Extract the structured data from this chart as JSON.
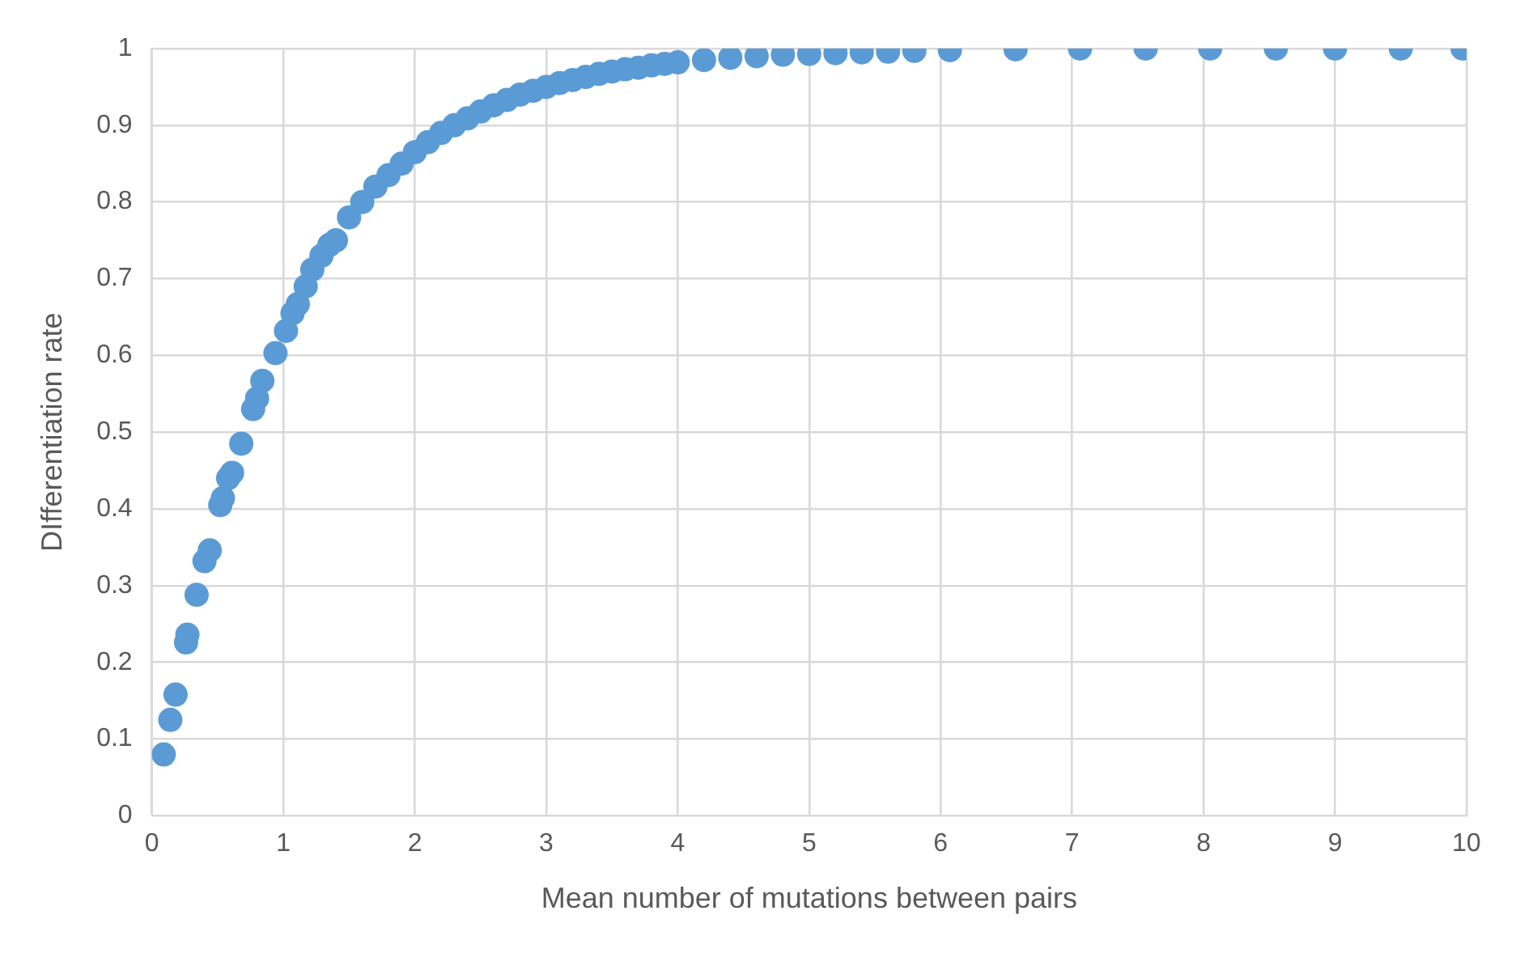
{
  "chart_data": {
    "type": "scatter",
    "xlabel": "Mean number of mutations between pairs",
    "ylabel": "DIfferentiation rate",
    "x": [
      0.09,
      0.14,
      0.18,
      0.26,
      0.27,
      0.34,
      0.4,
      0.44,
      0.52,
      0.54,
      0.58,
      0.61,
      0.68,
      0.77,
      0.8,
      0.84,
      0.94,
      1.02,
      1.07,
      1.11,
      1.17,
      1.22,
      1.29,
      1.35,
      1.4,
      1.5,
      1.6,
      1.7,
      1.8,
      1.9,
      2.0,
      2.1,
      2.2,
      2.3,
      2.4,
      2.5,
      2.6,
      2.7,
      2.8,
      2.9,
      3.0,
      3.1,
      3.2,
      3.3,
      3.4,
      3.5,
      3.6,
      3.7,
      3.8,
      3.9,
      4.0,
      4.2,
      4.4,
      4.6,
      4.8,
      5.0,
      5.2,
      5.4,
      5.6,
      5.8,
      6.07,
      6.57,
      7.06,
      7.56,
      8.05,
      8.55,
      9.0,
      9.5,
      9.97
    ],
    "series": [
      {
        "color": "#5b9bd5",
        "values": [
          0.08,
          0.125,
          0.158,
          0.226,
          0.236,
          0.288,
          0.332,
          0.346,
          0.405,
          0.414,
          0.44,
          0.447,
          0.485,
          0.53,
          0.544,
          0.567,
          0.603,
          0.632,
          0.655,
          0.667,
          0.69,
          0.712,
          0.73,
          0.744,
          0.75,
          0.78,
          0.8,
          0.82,
          0.835,
          0.85,
          0.865,
          0.878,
          0.89,
          0.9,
          0.909,
          0.918,
          0.926,
          0.933,
          0.94,
          0.945,
          0.95,
          0.955,
          0.959,
          0.963,
          0.967,
          0.97,
          0.973,
          0.975,
          0.978,
          0.98,
          0.982,
          0.985,
          0.988,
          0.99,
          0.992,
          0.993,
          0.994,
          0.995,
          0.996,
          0.997,
          0.998,
          0.999,
          1,
          1,
          1,
          1,
          1,
          1,
          1
        ]
      }
    ],
    "xlim": [
      0,
      10
    ],
    "xticks": [
      0,
      1,
      2,
      3,
      4,
      5,
      6,
      7,
      8,
      9,
      10
    ],
    "ylim": [
      0,
      1
    ],
    "yticks": [
      0,
      0.1,
      0.2,
      0.3,
      0.4,
      0.5,
      0.6,
      0.7,
      0.8,
      0.9,
      1
    ],
    "grid": true,
    "legend": false,
    "marker": "circle"
  }
}
